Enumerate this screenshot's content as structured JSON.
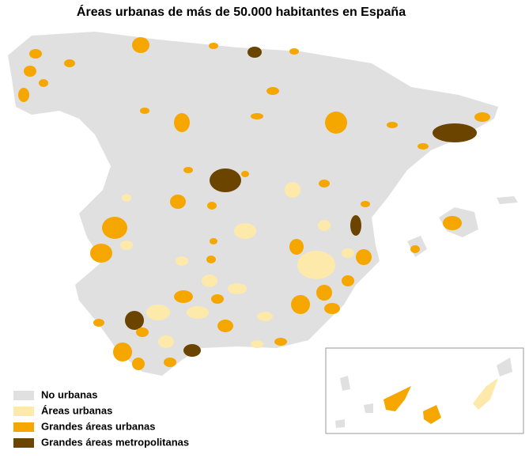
{
  "title": "Áreas urbanas de más de 50.000 habitantes en  España",
  "legend": [
    {
      "label": "No urbanas",
      "color": "#e0e0e0"
    },
    {
      "label": "Áreas urbanas",
      "color": "#fde9aa"
    },
    {
      "label": "Grandes áreas urbanas",
      "color": "#f5a700"
    },
    {
      "label": "Grandes áreas metropolitanas",
      "color": "#6b4400"
    }
  ]
}
